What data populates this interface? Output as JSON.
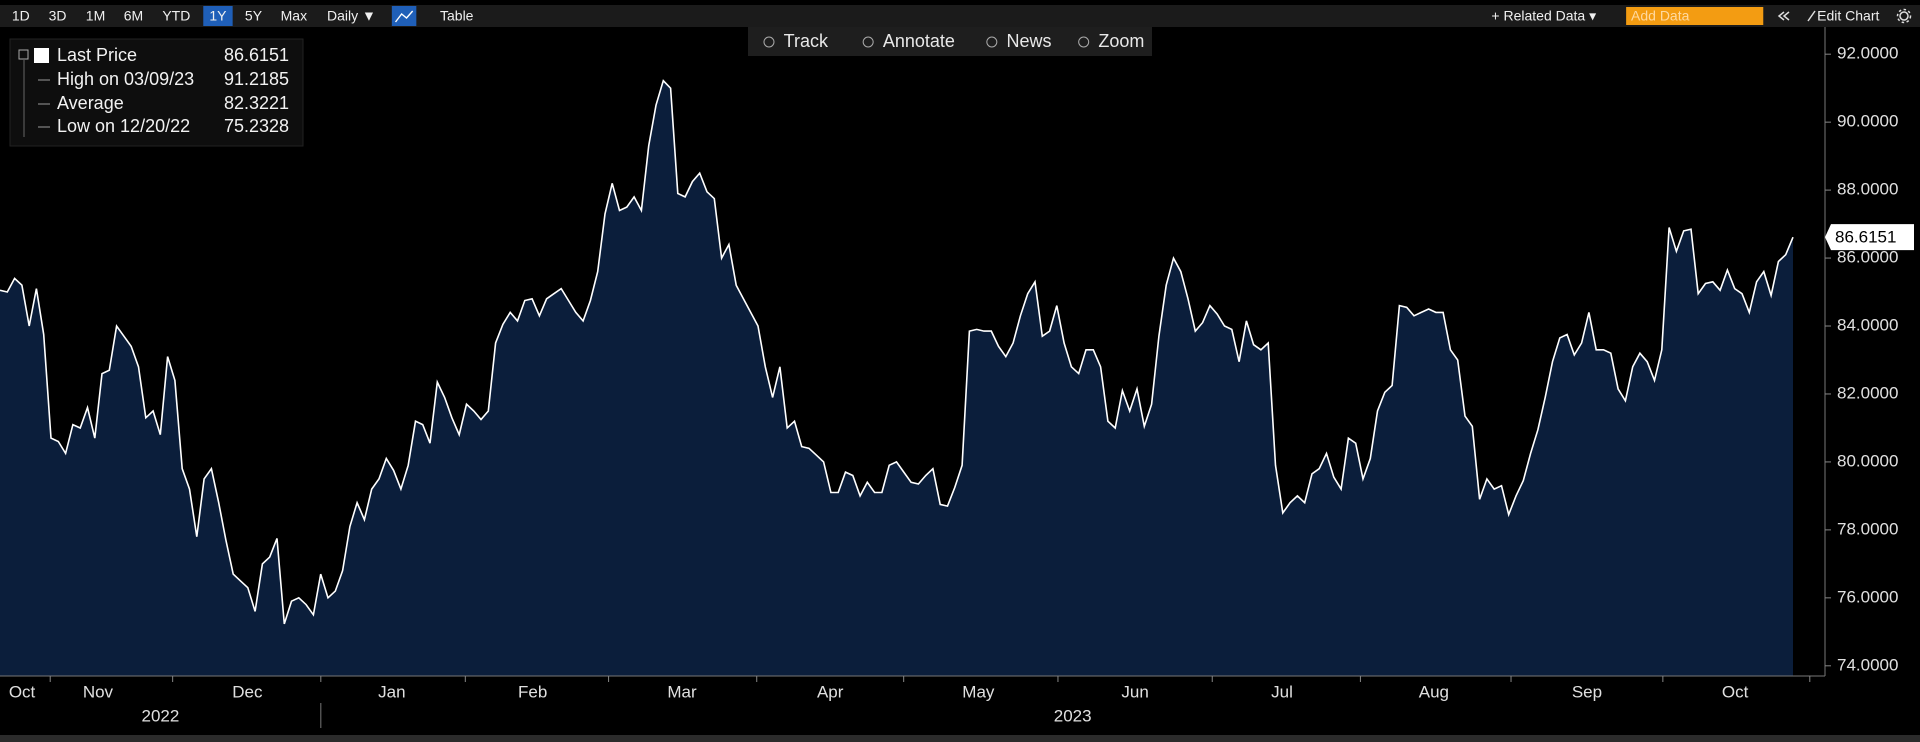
{
  "toolbar": {
    "ranges": [
      "1D",
      "3D",
      "1M",
      "6M",
      "YTD",
      "1Y",
      "5Y",
      "Max"
    ],
    "frequency": "Daily ▼",
    "table": "Table",
    "related": "+ Related Data ▾",
    "add_data": "Add Data",
    "edit_chart": "Edit Chart"
  },
  "tools": [
    "Track",
    "Annotate",
    "News",
    "Zoom"
  ],
  "chart_data": {
    "type": "area",
    "series": [
      {
        "name": "Last Price",
        "color": "#ffffff",
        "fill": "#0b1e3b",
        "values": [
          85.05,
          85.0,
          85.4,
          85.2,
          84.0,
          85.1,
          83.75,
          80.7,
          80.6,
          80.25,
          81.1,
          81.0,
          81.6,
          80.7,
          82.6,
          82.7,
          84.0,
          83.7,
          83.4,
          82.8,
          81.3,
          81.5,
          80.8,
          83.1,
          82.4,
          79.8,
          79.2,
          77.8,
          79.5,
          79.8,
          78.8,
          77.7,
          76.7,
          76.5,
          76.3,
          75.6,
          77.0,
          77.2,
          77.75,
          75.2328,
          75.9,
          76.0,
          75.8,
          75.5,
          76.7,
          76.0,
          76.2,
          76.8,
          78.1,
          78.8,
          78.3,
          79.2,
          79.5,
          80.1,
          79.75,
          79.2,
          79.9,
          81.2,
          81.1,
          80.55,
          82.35,
          81.9,
          81.3,
          80.8,
          81.7,
          81.5,
          81.25,
          81.5,
          83.5,
          84.05,
          84.4,
          84.15,
          84.75,
          84.8,
          84.3,
          84.8,
          84.95,
          85.1,
          84.75,
          84.4,
          84.15,
          84.75,
          85.6,
          87.3,
          88.2,
          87.4,
          87.5,
          87.8,
          87.4,
          89.3,
          90.5,
          91.2185,
          91.0,
          87.9,
          87.8,
          88.25,
          88.5,
          87.95,
          87.75,
          86.0,
          86.4,
          85.2,
          84.8,
          84.4,
          84.0,
          82.8,
          81.9,
          82.8,
          81.0,
          81.2,
          80.45,
          80.4,
          80.2,
          80.0,
          79.1,
          79.1,
          79.7,
          79.6,
          79.0,
          79.4,
          79.1,
          79.1,
          79.9,
          80.0,
          79.7,
          79.4,
          79.35,
          79.6,
          79.8,
          78.75,
          78.7,
          79.25,
          79.9,
          83.85,
          83.9,
          83.85,
          83.85,
          83.4,
          83.1,
          83.5,
          84.3,
          84.95,
          85.3,
          83.7,
          83.85,
          84.6,
          83.5,
          82.8,
          82.6,
          83.3,
          83.3,
          82.8,
          81.2,
          81.0,
          82.1,
          81.5,
          82.15,
          81.05,
          81.7,
          83.7,
          85.2,
          86.0,
          85.6,
          84.8,
          83.85,
          84.1,
          84.6,
          84.35,
          84.0,
          83.9,
          82.95,
          84.15,
          83.45,
          83.3,
          83.5,
          79.9,
          78.5,
          78.8,
          79.0,
          78.8,
          79.65,
          79.8,
          80.25,
          79.55,
          79.2,
          80.7,
          80.55,
          79.5,
          80.1,
          81.5,
          82.05,
          82.25,
          84.6,
          84.55,
          84.3,
          84.4,
          84.5,
          84.4,
          84.4,
          83.3,
          83.0,
          81.35,
          81.05,
          78.9,
          79.5,
          79.2,
          79.3,
          78.45,
          79.0,
          79.45,
          80.25,
          80.95,
          81.9,
          82.95,
          83.65,
          83.75,
          83.15,
          83.5,
          84.4,
          83.3,
          83.3,
          83.2,
          82.15,
          81.8,
          82.8,
          83.2,
          82.95,
          82.4,
          83.3,
          86.9,
          86.2,
          86.8,
          86.85,
          84.95,
          85.25,
          85.3,
          85.05,
          85.65,
          85.1,
          84.95,
          84.4,
          85.3,
          85.6,
          84.9,
          85.9,
          86.1,
          86.6151
        ]
      }
    ],
    "stats": [
      {
        "label": "High on 03/09/23",
        "value": 91.2185
      },
      {
        "label": "Average",
        "value": 82.3221
      },
      {
        "label": "Low on 12/20/22",
        "value": 75.2328
      }
    ],
    "x_labels": [
      "Oct",
      "Nov",
      "Dec",
      "Jan",
      "Feb",
      "Mar",
      "Apr",
      "May",
      "Jun",
      "Jul",
      "Aug",
      "Sep",
      "Oct"
    ],
    "year_labels": [
      "2022",
      "2023"
    ],
    "ylim": [
      73.7,
      92.8
    ],
    "yticks": [
      {
        "value": 74,
        "label": "74.0000"
      },
      {
        "value": 76,
        "label": "76.0000"
      },
      {
        "value": 78,
        "label": "78.0000"
      },
      {
        "value": 80,
        "label": "80.0000"
      },
      {
        "value": 82,
        "label": "82.0000"
      },
      {
        "value": 84,
        "label": "84.0000"
      },
      {
        "value": 86,
        "label": "86.0000"
      },
      {
        "value": 88,
        "label": "88.0000"
      },
      {
        "value": 90,
        "label": "90.0000"
      },
      {
        "value": 92,
        "label": "92.0000"
      }
    ]
  }
}
